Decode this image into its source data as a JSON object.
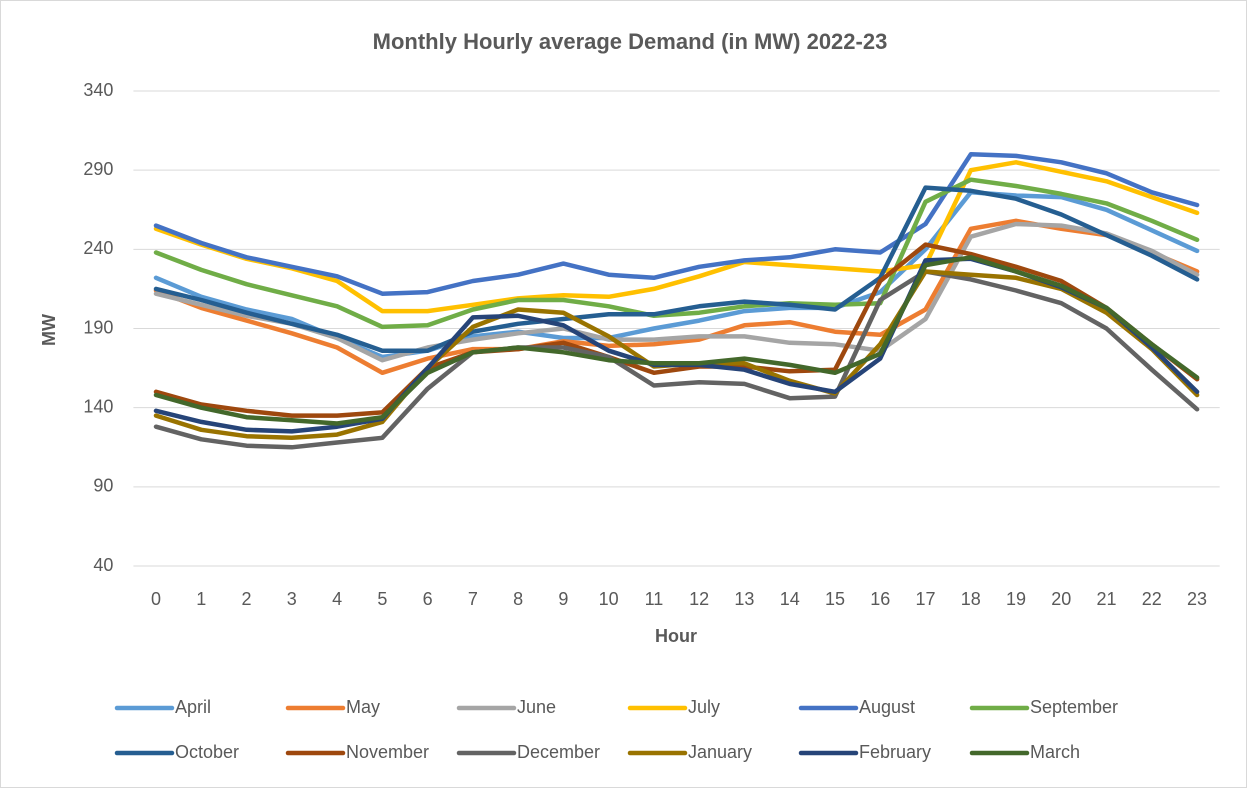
{
  "chart_data": {
    "type": "line",
    "title": "Monthly Hourly average Demand (in MW) 2022-23",
    "x_label": "Hour",
    "y_label": "MW",
    "categories": [
      0,
      1,
      2,
      3,
      4,
      5,
      6,
      7,
      8,
      9,
      10,
      11,
      12,
      13,
      14,
      15,
      16,
      17,
      18,
      19,
      20,
      21,
      22,
      23
    ],
    "ylim": [
      40,
      340
    ],
    "yticks": [
      40,
      90,
      140,
      190,
      240,
      290,
      340
    ],
    "grid": true,
    "legend": "bottom",
    "series": [
      {
        "name": "April",
        "color": "#5b9bd5",
        "values": [
          222,
          210,
          202,
          196,
          184,
          172,
          176,
          185,
          188,
          184,
          184,
          190,
          195,
          201,
          203,
          203,
          213,
          240,
          276,
          274,
          273,
          265,
          252,
          239
        ]
      },
      {
        "name": "May",
        "color": "#ed7d31",
        "values": [
          214,
          203,
          195,
          187,
          178,
          162,
          171,
          177,
          177,
          182,
          179,
          180,
          183,
          192,
          194,
          188,
          186,
          202,
          253,
          258,
          253,
          249,
          238,
          226
        ]
      },
      {
        "name": "June",
        "color": "#a5a5a5",
        "values": [
          212,
          205,
          198,
          193,
          184,
          170,
          178,
          183,
          187,
          190,
          183,
          183,
          185,
          185,
          181,
          180,
          176,
          196,
          248,
          256,
          255,
          250,
          239,
          224
        ]
      },
      {
        "name": "July",
        "color": "#ffc000",
        "values": [
          253,
          243,
          234,
          228,
          220,
          201,
          201,
          205,
          209,
          211,
          210,
          215,
          223,
          232,
          230,
          228,
          226,
          230,
          290,
          295,
          289,
          283,
          273,
          263
        ]
      },
      {
        "name": "August",
        "color": "#4472c4",
        "values": [
          255,
          244,
          235,
          229,
          223,
          212,
          213,
          220,
          224,
          231,
          224,
          222,
          229,
          233,
          235,
          240,
          238,
          256,
          300,
          299,
          295,
          288,
          276,
          268
        ]
      },
      {
        "name": "September",
        "color": "#70ad47",
        "values": [
          238,
          227,
          218,
          211,
          204,
          191,
          192,
          202,
          208,
          208,
          204,
          198,
          200,
          204,
          206,
          205,
          206,
          270,
          284,
          280,
          275,
          269,
          258,
          246
        ]
      },
      {
        "name": "October",
        "color": "#255e91",
        "values": [
          215,
          208,
          200,
          193,
          186,
          176,
          176,
          188,
          193,
          196,
          199,
          199,
          204,
          207,
          205,
          202,
          222,
          279,
          277,
          272,
          262,
          249,
          236,
          221
        ]
      },
      {
        "name": "November",
        "color": "#9e480e",
        "values": [
          150,
          142,
          138,
          135,
          135,
          137,
          165,
          175,
          177,
          181,
          172,
          162,
          166,
          166,
          163,
          164,
          220,
          243,
          237,
          229,
          220,
          203,
          180,
          158
        ]
      },
      {
        "name": "December",
        "color": "#636363",
        "values": [
          128,
          120,
          116,
          115,
          118,
          121,
          152,
          175,
          178,
          178,
          172,
          154,
          156,
          155,
          146,
          147,
          208,
          226,
          221,
          214,
          206,
          190,
          164,
          139
        ]
      },
      {
        "name": "January",
        "color": "#997300",
        "values": [
          135,
          126,
          122,
          121,
          123,
          131,
          165,
          191,
          202,
          200,
          185,
          166,
          168,
          168,
          157,
          149,
          180,
          226,
          224,
          222,
          215,
          200,
          177,
          148
        ]
      },
      {
        "name": "February",
        "color": "#264478",
        "values": [
          138,
          131,
          126,
          125,
          128,
          133,
          165,
          197,
          198,
          192,
          176,
          167,
          167,
          164,
          155,
          150,
          171,
          233,
          234,
          226,
          216,
          203,
          178,
          150
        ]
      },
      {
        "name": "March",
        "color": "#43682b",
        "values": [
          148,
          140,
          134,
          132,
          130,
          134,
          162,
          175,
          178,
          175,
          170,
          168,
          168,
          171,
          167,
          162,
          174,
          230,
          235,
          226,
          217,
          203,
          180,
          159
        ]
      }
    ]
  }
}
